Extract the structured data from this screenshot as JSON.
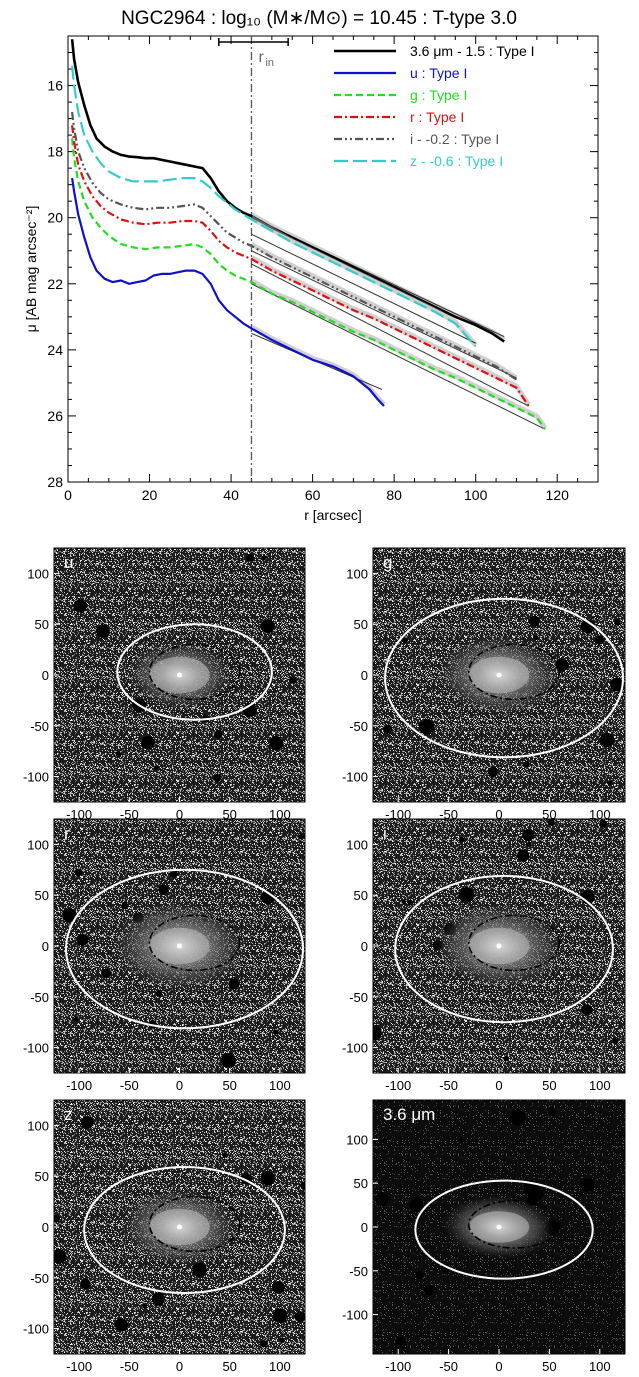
{
  "figure": {
    "title": "NGC2964 : log₁₀ (M∗/M⊙) = 10.45 : T-type 3.0"
  },
  "chart_data": [
    {
      "type": "line",
      "title": "NGC2964 : log₁₀ (M∗/M⊙) = 10.45 : T-type 3.0",
      "xlabel": "r [arcsec]",
      "ylabel": "μ [AB mag arcsec⁻²]",
      "xlim": [
        0,
        130
      ],
      "ylim": [
        28,
        14.5
      ],
      "y_inverted": true,
      "x_ticks": [
        0,
        20,
        40,
        60,
        80,
        100,
        120
      ],
      "y_ticks": [
        16,
        18,
        20,
        22,
        24,
        26,
        28
      ],
      "legend_position": "top-right",
      "annotations": {
        "r_in_label": "r",
        "r_in_sub": "in",
        "r_in_value": 45,
        "r_in_range": [
          37,
          54
        ]
      },
      "series": [
        {
          "name": "3.6 μm - 1.5 : Type I",
          "color": "#000000",
          "style": "solid",
          "width": 2.6,
          "x": [
            1,
            1.5,
            2.5,
            4,
            5.5,
            7,
            9,
            11,
            13,
            15,
            17,
            19,
            21,
            23,
            25,
            27,
            29,
            31,
            33,
            35,
            37,
            39,
            41,
            43,
            45,
            50,
            55,
            60,
            65,
            70,
            75,
            80,
            85,
            90,
            95,
            100,
            104,
            107
          ],
          "y": [
            14.6,
            15.2,
            15.9,
            16.6,
            17.2,
            17.6,
            17.85,
            18.0,
            18.1,
            18.15,
            18.17,
            18.2,
            18.2,
            18.25,
            18.3,
            18.35,
            18.4,
            18.45,
            18.5,
            18.8,
            19.2,
            19.5,
            19.7,
            19.85,
            19.95,
            20.3,
            20.6,
            20.9,
            21.2,
            21.5,
            21.8,
            22.1,
            22.4,
            22.7,
            23.0,
            23.25,
            23.5,
            23.75
          ],
          "fit": [
            [
              45,
              20.0
            ],
            [
              107,
              23.6
            ]
          ]
        },
        {
          "name": "u : Type I",
          "color": "#1010c8",
          "style": "solid",
          "width": 2.2,
          "x": [
            1,
            1.5,
            2.5,
            4,
            5.5,
            7,
            9,
            11,
            13,
            15,
            17,
            19,
            21,
            23,
            25,
            27,
            29,
            31,
            33,
            35,
            37,
            39,
            41,
            43,
            45,
            50,
            55,
            60,
            65,
            70,
            74,
            76,
            77.5
          ],
          "y": [
            18.8,
            19.2,
            19.9,
            20.6,
            21.2,
            21.6,
            21.85,
            21.95,
            21.9,
            22.0,
            21.95,
            21.9,
            21.75,
            21.7,
            21.7,
            21.65,
            21.6,
            21.6,
            21.7,
            22.0,
            22.5,
            22.8,
            23.0,
            23.2,
            23.35,
            23.7,
            24.0,
            24.3,
            24.5,
            24.8,
            25.2,
            25.5,
            25.7
          ],
          "fit": [
            [
              45,
              23.5
            ],
            [
              77,
              25.2
            ]
          ]
        },
        {
          "name": "g : Type I",
          "color": "#22dd22",
          "style": "dashed",
          "width": 2.2,
          "x": [
            1,
            1.5,
            2.5,
            4,
            6,
            8,
            10,
            13,
            16,
            19,
            22,
            25,
            28,
            31,
            33,
            35,
            37,
            39,
            41,
            43,
            45,
            50,
            55,
            60,
            65,
            70,
            75,
            80,
            85,
            90,
            95,
            100,
            105,
            110,
            115,
            117
          ],
          "y": [
            17.6,
            18.2,
            18.9,
            19.5,
            20.0,
            20.3,
            20.55,
            20.8,
            20.9,
            20.95,
            20.9,
            20.9,
            20.85,
            20.8,
            20.9,
            21.1,
            21.4,
            21.6,
            21.75,
            21.85,
            21.95,
            22.3,
            22.55,
            22.85,
            23.15,
            23.45,
            23.7,
            24.0,
            24.3,
            24.6,
            24.85,
            25.15,
            25.45,
            25.75,
            26.05,
            26.4
          ],
          "fit": [
            [
              45,
              22.0
            ],
            [
              117,
              26.4
            ]
          ]
        },
        {
          "name": "r : Type I",
          "color": "#dd1111",
          "style": "dashdot",
          "width": 2.2,
          "x": [
            1,
            1.5,
            2.5,
            4,
            6,
            8,
            10,
            13,
            16,
            19,
            22,
            25,
            28,
            31,
            33,
            35,
            37,
            39,
            41,
            43,
            45,
            50,
            55,
            60,
            65,
            70,
            75,
            80,
            85,
            90,
            95,
            100,
            105,
            110,
            113
          ],
          "y": [
            17.2,
            17.7,
            18.4,
            18.9,
            19.35,
            19.65,
            19.85,
            20.05,
            20.15,
            20.2,
            20.15,
            20.15,
            20.1,
            20.1,
            20.15,
            20.4,
            20.7,
            20.9,
            21.05,
            21.15,
            21.25,
            21.6,
            21.9,
            22.2,
            22.5,
            22.8,
            23.05,
            23.35,
            23.65,
            23.95,
            24.25,
            24.55,
            24.85,
            25.15,
            25.7
          ],
          "fit": [
            [
              45,
              21.4
            ],
            [
              113,
              25.7
            ]
          ]
        },
        {
          "name": "i - -0.2 : Type I",
          "color": "#555555",
          "style": "dashdotdot",
          "width": 2.2,
          "x": [
            1,
            1.5,
            2.5,
            4,
            6,
            8,
            10,
            13,
            16,
            19,
            22,
            25,
            28,
            31,
            33,
            35,
            37,
            39,
            41,
            43,
            45,
            50,
            55,
            60,
            65,
            70,
            75,
            80,
            85,
            90,
            95,
            100,
            105,
            110
          ],
          "y": [
            16.8,
            17.3,
            18.0,
            18.5,
            18.95,
            19.25,
            19.45,
            19.6,
            19.7,
            19.75,
            19.7,
            19.7,
            19.65,
            19.6,
            19.7,
            19.95,
            20.2,
            20.45,
            20.6,
            20.75,
            20.85,
            21.2,
            21.5,
            21.8,
            22.1,
            22.4,
            22.7,
            23.0,
            23.3,
            23.6,
            23.9,
            24.2,
            24.5,
            24.9
          ],
          "fit": [
            [
              45,
              21.0
            ],
            [
              110,
              24.85
            ]
          ]
        },
        {
          "name": "z - -0.6 : Type I",
          "color": "#33cccc",
          "style": "longdash",
          "width": 2.2,
          "x": [
            1,
            1.5,
            2.5,
            4,
            6,
            8,
            10,
            13,
            16,
            19,
            22,
            25,
            28,
            31,
            33,
            35,
            37,
            39,
            41,
            43,
            45,
            50,
            55,
            60,
            65,
            70,
            75,
            80,
            85,
            90,
            95,
            100
          ],
          "y": [
            15.4,
            16.0,
            16.8,
            17.5,
            18.0,
            18.35,
            18.6,
            18.8,
            18.9,
            18.9,
            18.9,
            18.85,
            18.8,
            18.8,
            18.9,
            19.1,
            19.35,
            19.55,
            19.75,
            19.9,
            20.05,
            20.4,
            20.75,
            21.05,
            21.35,
            21.65,
            21.95,
            22.25,
            22.55,
            22.85,
            23.2,
            23.9
          ],
          "fit": [
            [
              45,
              20.5
            ],
            [
              100,
              23.8
            ]
          ]
        }
      ]
    },
    {
      "type": "image",
      "panels": [
        {
          "label": "u",
          "outer": {
            "a": 77,
            "b": 47,
            "cx": 15,
            "cy": 3
          },
          "inner": {
            "a": 45,
            "b": 27,
            "cx": 15,
            "cy": 3
          },
          "galaxy": 0.85,
          "bright": false,
          "ylim": [
            -125,
            125
          ],
          "y_ticks": [
            100,
            50,
            0,
            -50,
            -100
          ],
          "x_ticks": [
            -100,
            -50,
            0,
            50,
            100
          ]
        },
        {
          "label": "g",
          "outer": {
            "a": 118,
            "b": 78,
            "cx": 5,
            "cy": -3
          },
          "inner": {
            "a": 45,
            "b": 27,
            "cx": 15,
            "cy": 3
          },
          "galaxy": 1.0,
          "bright": false,
          "ylim": [
            -125,
            125
          ],
          "y_ticks": [
            100,
            50,
            0,
            -50,
            -100
          ],
          "x_ticks": [
            -100,
            -50,
            0,
            50,
            100
          ]
        },
        {
          "label": "r",
          "outer": {
            "a": 118,
            "b": 78,
            "cx": 5,
            "cy": -3
          },
          "inner": {
            "a": 45,
            "b": 27,
            "cx": 15,
            "cy": 3
          },
          "galaxy": 1.1,
          "bright": false,
          "ylim": [
            -125,
            125
          ],
          "y_ticks": [
            100,
            50,
            0,
            -50,
            -100
          ],
          "x_ticks": [
            -100,
            -50,
            0,
            50,
            100
          ]
        },
        {
          "label": "i",
          "outer": {
            "a": 108,
            "b": 72,
            "cx": 5,
            "cy": -3
          },
          "inner": {
            "a": 45,
            "b": 27,
            "cx": 15,
            "cy": 3
          },
          "galaxy": 1.05,
          "bright": false,
          "ylim": [
            -125,
            125
          ],
          "y_ticks": [
            100,
            50,
            0,
            -50,
            -100
          ],
          "x_ticks": [
            -100,
            -50,
            0,
            50,
            100
          ]
        },
        {
          "label": "z",
          "outer": {
            "a": 100,
            "b": 62,
            "cx": 5,
            "cy": -3
          },
          "inner": {
            "a": 45,
            "b": 27,
            "cx": 15,
            "cy": 3
          },
          "galaxy": 0.95,
          "bright": false,
          "ylim": [
            -125,
            125
          ],
          "y_ticks": [
            100,
            50,
            0,
            -50,
            -100
          ],
          "x_ticks": [
            -100,
            -50,
            0,
            50,
            100
          ]
        },
        {
          "label": "3.6 μm",
          "outer": {
            "a": 88,
            "b": 56,
            "cx": 5,
            "cy": -3
          },
          "inner": {
            "a": 45,
            "b": 27,
            "cx": 15,
            "cy": 3
          },
          "galaxy": 0.9,
          "bright": true,
          "ylim": [
            -145,
            145
          ],
          "y_ticks": [
            100,
            50,
            0,
            -50,
            -100
          ],
          "x_ticks": [
            -100,
            -50,
            0,
            50,
            100
          ]
        }
      ]
    }
  ]
}
